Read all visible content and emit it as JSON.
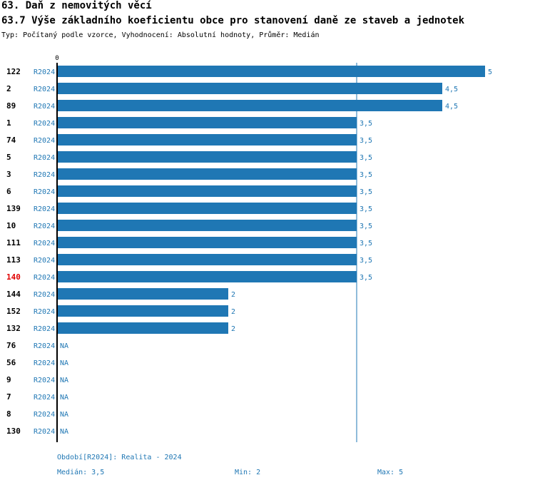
{
  "header": {
    "title": "63. Daň z nemovitých věcí",
    "subtitle": "63.7 Výše základního koeficientu obce pro stanovení daně ze staveb a jednotek",
    "description": "Typ: Počítaný podle vzorce, Vyhodnocení: Absolutní hodnoty, Průměr: Medián"
  },
  "colors": {
    "bar": "#1f77b4",
    "label": "#1f77b4",
    "highlight": "#e00000",
    "axis": "#000000",
    "median_line": "#1f77b4"
  },
  "chart_data": {
    "type": "bar",
    "orientation": "horizontal",
    "axis_zero_label": "0",
    "xlim": [
      0,
      5
    ],
    "median": 3.5,
    "series_label": "R2024",
    "categories": [
      "122",
      "2",
      "89",
      "1",
      "74",
      "5",
      "3",
      "6",
      "139",
      "10",
      "111",
      "113",
      "140",
      "144",
      "152",
      "132",
      "76",
      "56",
      "9",
      "7",
      "8",
      "130"
    ],
    "values": [
      5,
      4.5,
      4.5,
      3.5,
      3.5,
      3.5,
      3.5,
      3.5,
      3.5,
      3.5,
      3.5,
      3.5,
      3.5,
      2,
      2,
      2,
      null,
      null,
      null,
      null,
      null,
      null
    ],
    "value_labels": [
      "5",
      "4,5",
      "4,5",
      "3,5",
      "3,5",
      "3,5",
      "3,5",
      "3,5",
      "3,5",
      "3,5",
      "3,5",
      "3,5",
      "3,5",
      "2",
      "2",
      "2",
      "NA",
      "NA",
      "NA",
      "NA",
      "NA",
      "NA"
    ],
    "highlight_category": "140"
  },
  "footer": {
    "period": "Období[R2024]: Realita - 2024",
    "median": "Medián: 3,5",
    "min": "Min: 2",
    "max": "Max: 5"
  }
}
